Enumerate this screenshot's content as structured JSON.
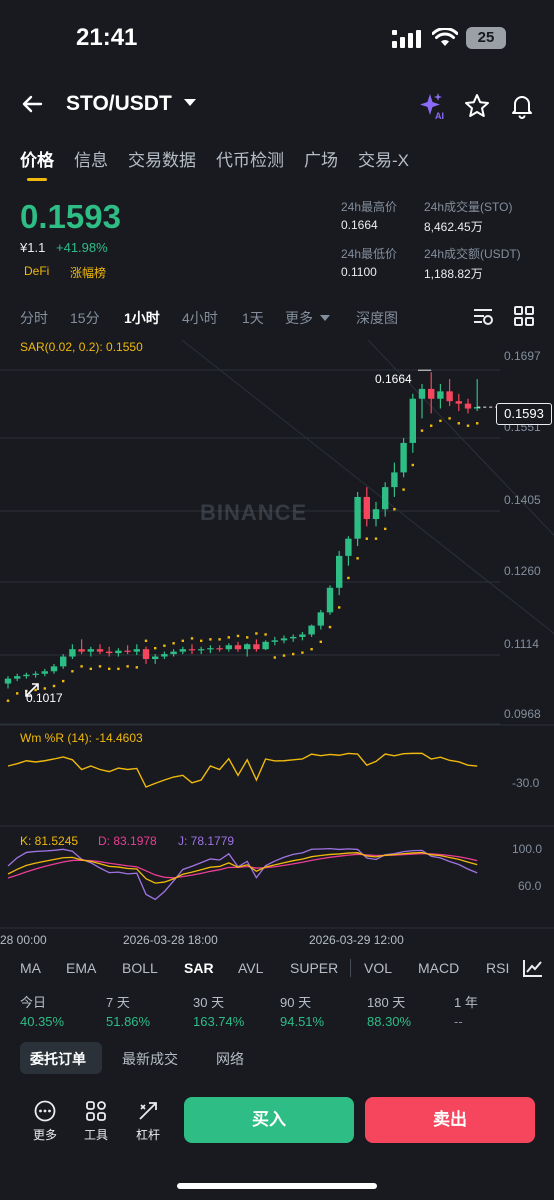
{
  "status": {
    "time": "21:41",
    "battery": "25"
  },
  "header": {
    "pair": "STO/USDT"
  },
  "tabs": [
    "价格",
    "信息",
    "交易数据",
    "代币检测",
    "广场",
    "交易-X"
  ],
  "price": {
    "last": "0.1593",
    "fiat": "¥1.1",
    "change": "+41.98%",
    "tags": [
      "DeFi",
      "涨幅榜"
    ],
    "stats": {
      "high_label": "24h最高价",
      "high": "0.1664",
      "low_label": "24h最低价",
      "low": "0.1100",
      "vol_base_label": "24h成交量(STO)",
      "vol_base": "8,462.45万",
      "vol_quote_label": "24h成交额(USDT)",
      "vol_quote": "1,188.82万"
    }
  },
  "timeframes": [
    "分时",
    "15分",
    "1小时",
    "4小时",
    "1天",
    "更多",
    "深度图"
  ],
  "chart": {
    "watermark": "BINANCE",
    "sar_label": "SAR(0.02, 0.2): 0.1550",
    "price_axis": [
      "0.1697",
      "0.1551",
      "0.1405",
      "0.1260",
      "0.1114",
      "0.0968"
    ],
    "last_price_tag": "0.1593",
    "high_marker": "0.1664",
    "low_marker": "0.1017",
    "wr_label": "Wm %R (14): -14.4603",
    "wr_axis": "-30.0",
    "kdj_k": "K: 81.5245",
    "kdj_d": "D: 83.1978",
    "kdj_j": "J: 78.1779",
    "kdj_axis": [
      "100.0",
      "60.0"
    ],
    "time_axis": [
      "28 00:00",
      "2026-03-28 18:00",
      "2026-03-29 12:00"
    ]
  },
  "indicators": [
    "MA",
    "EMA",
    "BOLL",
    "SAR",
    "AVL",
    "SUPER",
    "VOL",
    "MACD",
    "RSI"
  ],
  "performance": {
    "labels": [
      "今日",
      "7 天",
      "30 天",
      "90 天",
      "180 天",
      "1 年"
    ],
    "values": [
      "40.35%",
      "51.86%",
      "163.74%",
      "94.51%",
      "88.30%",
      "--"
    ]
  },
  "order_tabs": [
    "委托订单",
    "最新成交",
    "网络"
  ],
  "bottom": {
    "more": "更多",
    "tools": "工具",
    "leverage": "杠杆",
    "buy": "买入",
    "sell": "卖出"
  },
  "colors": {
    "up": "#2ebd85",
    "down": "#f6465d",
    "accent": "#f0b90b",
    "background": "#181a20"
  },
  "chart_data": {
    "type": "candlestick",
    "ylim": [
      0.0968,
      0.1697
    ],
    "series": [
      {
        "name": "STO/USDT 1h",
        "ohlc": [
          [
            0.103,
            0.1045,
            0.102,
            0.104
          ],
          [
            0.104,
            0.105,
            0.1035,
            0.1045
          ],
          [
            0.1045,
            0.1052,
            0.104,
            0.1048
          ],
          [
            0.1048,
            0.1055,
            0.1042,
            0.105
          ],
          [
            0.105,
            0.106,
            0.1045,
            0.1055
          ],
          [
            0.1055,
            0.107,
            0.105,
            0.1065
          ],
          [
            0.1065,
            0.109,
            0.106,
            0.1085
          ],
          [
            0.1085,
            0.111,
            0.108,
            0.11
          ],
          [
            0.11,
            0.112,
            0.109,
            0.1095
          ],
          [
            0.1095,
            0.1105,
            0.1085,
            0.11
          ],
          [
            0.11,
            0.111,
            0.109,
            0.1095
          ],
          [
            0.1095,
            0.1105,
            0.1085,
            0.1092
          ],
          [
            0.1092,
            0.1102,
            0.1085,
            0.1097
          ],
          [
            0.1097,
            0.1108,
            0.109,
            0.1095
          ],
          [
            0.1095,
            0.111,
            0.1088,
            0.11
          ],
          [
            0.11,
            0.1105,
            0.107,
            0.108
          ],
          [
            0.108,
            0.109,
            0.107,
            0.1085
          ],
          [
            0.1085,
            0.1095,
            0.108,
            0.109
          ],
          [
            0.109,
            0.11,
            0.1085,
            0.1095
          ],
          [
            0.1095,
            0.1105,
            0.109,
            0.11
          ],
          [
            0.11,
            0.111,
            0.109,
            0.1098
          ],
          [
            0.1098,
            0.1105,
            0.109,
            0.11
          ],
          [
            0.11,
            0.1108,
            0.1092,
            0.1102
          ],
          [
            0.1102,
            0.1108,
            0.1095,
            0.11
          ],
          [
            0.11,
            0.1112,
            0.1095,
            0.1108
          ],
          [
            0.1108,
            0.1115,
            0.1095,
            0.11
          ],
          [
            0.11,
            0.1112,
            0.1085,
            0.111
          ],
          [
            0.111,
            0.112,
            0.1095,
            0.11
          ],
          [
            0.11,
            0.1118,
            0.1098,
            0.1115
          ],
          [
            0.1115,
            0.1125,
            0.1108,
            0.1118
          ],
          [
            0.1118,
            0.1128,
            0.1112,
            0.1122
          ],
          [
            0.1122,
            0.113,
            0.1115,
            0.1125
          ],
          [
            0.1125,
            0.1135,
            0.1118,
            0.113
          ],
          [
            0.113,
            0.115,
            0.1125,
            0.1148
          ],
          [
            0.1148,
            0.118,
            0.114,
            0.1175
          ],
          [
            0.1175,
            0.123,
            0.117,
            0.1225
          ],
          [
            0.1225,
            0.13,
            0.121,
            0.129
          ],
          [
            0.129,
            0.133,
            0.127,
            0.1325
          ],
          [
            0.1325,
            0.142,
            0.131,
            0.141
          ],
          [
            0.141,
            0.143,
            0.135,
            0.1365
          ],
          [
            0.1365,
            0.14,
            0.135,
            0.1385
          ],
          [
            0.1385,
            0.144,
            0.137,
            0.143
          ],
          [
            0.143,
            0.148,
            0.141,
            0.146
          ],
          [
            0.146,
            0.153,
            0.145,
            0.152
          ],
          [
            0.152,
            0.162,
            0.15,
            0.161
          ],
          [
            0.161,
            0.164,
            0.157,
            0.163
          ],
          [
            0.163,
            0.1664,
            0.158,
            0.161
          ],
          [
            0.161,
            0.164,
            0.159,
            0.1625
          ],
          [
            0.1625,
            0.165,
            0.1595,
            0.1605
          ],
          [
            0.1605,
            0.162,
            0.1585,
            0.16
          ],
          [
            0.16,
            0.161,
            0.158,
            0.159
          ],
          [
            0.159,
            0.165,
            0.1585,
            0.1593
          ]
        ]
      }
    ]
  }
}
